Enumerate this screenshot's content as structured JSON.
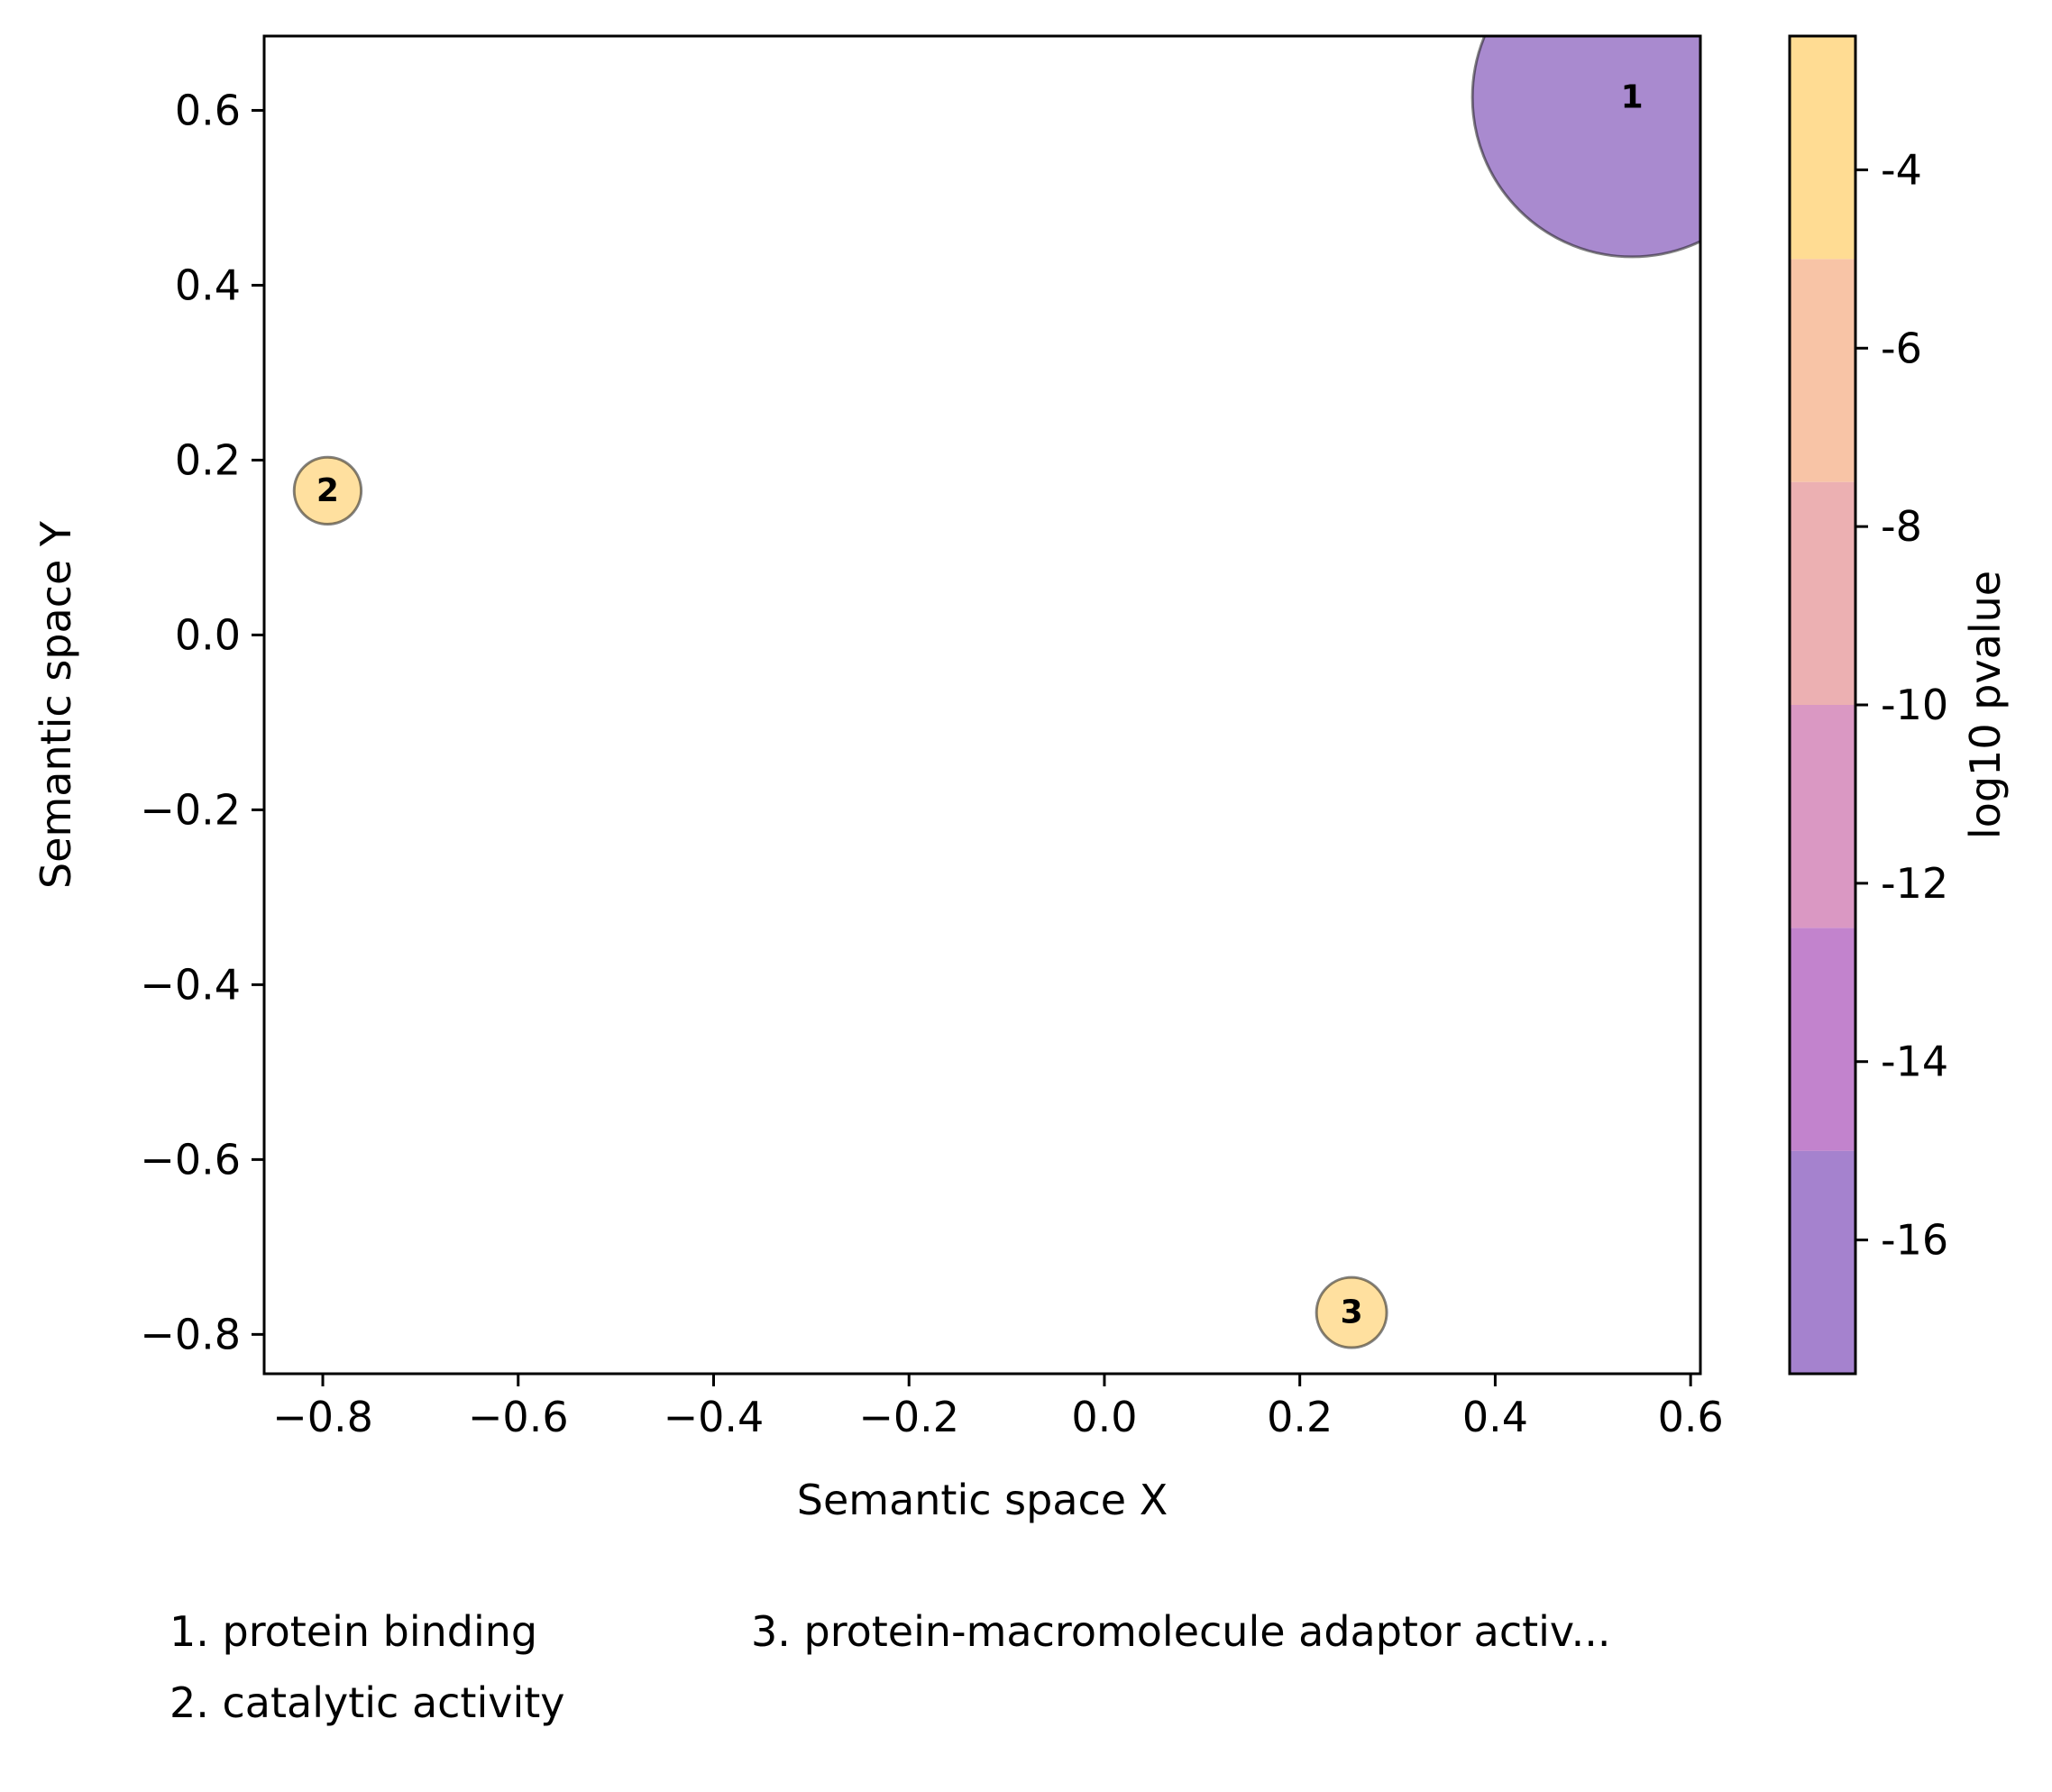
{
  "chart_data": {
    "type": "scatter",
    "xlabel": "Semantic space X",
    "ylabel": "Semantic space Y",
    "xlim": [
      -0.86,
      0.61
    ],
    "ylim": [
      -0.845,
      0.685
    ],
    "x_ticks": [
      -0.8,
      -0.6,
      -0.4,
      -0.2,
      0.0,
      0.2,
      0.4,
      0.6
    ],
    "x_tick_labels": [
      "−0.8",
      "−0.6",
      "−0.4",
      "−0.2",
      "0.0",
      "0.2",
      "0.4",
      "0.6"
    ],
    "y_ticks": [
      0.6,
      0.4,
      0.2,
      0.0,
      -0.2,
      -0.4,
      -0.6,
      -0.8
    ],
    "y_tick_labels": [
      "0.6",
      "0.4",
      "0.2",
      "0.0",
      "−0.2",
      "−0.4",
      "−0.6",
      "−0.8"
    ],
    "grid": false,
    "points": [
      {
        "label": "1",
        "term": "protein binding",
        "x": 0.54,
        "y": 0.615,
        "log10_pvalue": -17,
        "relative_size": 1.0,
        "color": "#7b4bb5"
      },
      {
        "label": "2",
        "term": "catalytic activity",
        "x": -0.795,
        "y": 0.165,
        "log10_pvalue": -3,
        "relative_size": 0.21,
        "color": "#ffd06b"
      },
      {
        "label": "3",
        "term": "protein-macromolecule adaptor activ...",
        "x": 0.253,
        "y": -0.775,
        "log10_pvalue": -3,
        "relative_size": 0.22,
        "color": "#ffd06b"
      }
    ],
    "colorbar": {
      "label": "log10 pvalue",
      "range": [
        -17.5,
        -2.5
      ],
      "tick_values": [
        -4,
        -6,
        -8,
        -10,
        -12,
        -14,
        -16
      ],
      "tick_labels": [
        "-4",
        "-6",
        "-8",
        "-10",
        "-12",
        "-14",
        "-16"
      ],
      "bands": [
        {
          "from": -17.5,
          "to": -15,
          "color": "#a582ce"
        },
        {
          "from": -15,
          "to": -12.5,
          "color": "#c283cd"
        },
        {
          "from": -12.5,
          "to": -10,
          "color": "#da98c3"
        },
        {
          "from": -10,
          "to": -7.5,
          "color": "#ecb0b2"
        },
        {
          "from": -7.5,
          "to": -5,
          "color": "#f8c4a6"
        },
        {
          "from": -5,
          "to": -2.5,
          "color": "#ffdc93"
        }
      ]
    },
    "legend": {
      "position": "bottom",
      "columns": [
        [
          "1. protein binding",
          "2. catalytic activity"
        ],
        [
          "3. protein-macromolecule adaptor activ..."
        ]
      ]
    }
  }
}
